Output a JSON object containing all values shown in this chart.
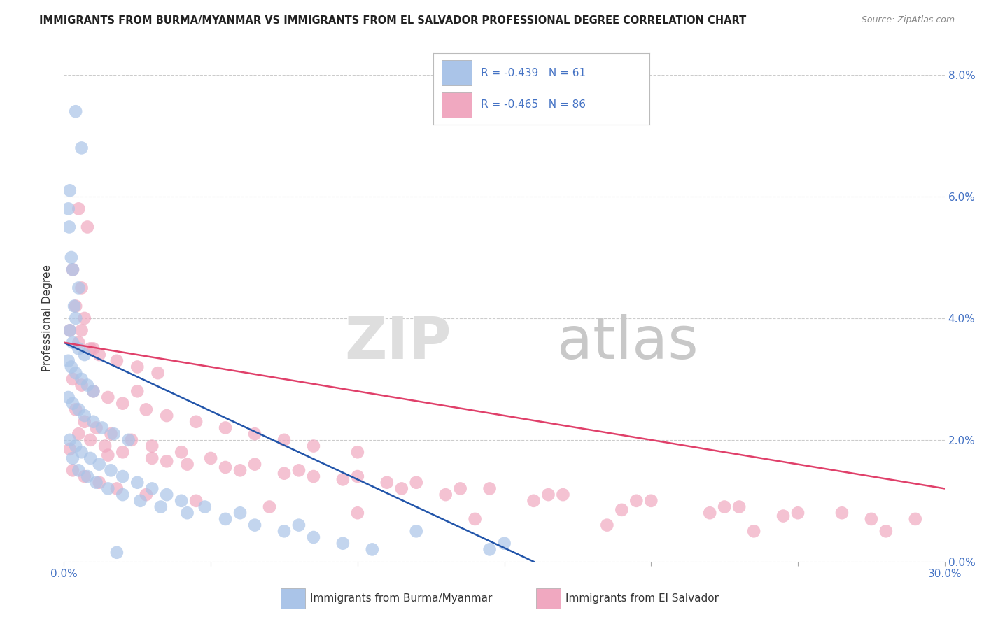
{
  "title": "IMMIGRANTS FROM BURMA/MYANMAR VS IMMIGRANTS FROM EL SALVADOR PROFESSIONAL DEGREE CORRELATION CHART",
  "source": "Source: ZipAtlas.com",
  "ylabel": "Professional Degree",
  "legend_blue_r": "-0.439",
  "legend_blue_n": "61",
  "legend_pink_r": "-0.465",
  "legend_pink_n": "86",
  "legend_blue_label": "Immigrants from Burma/Myanmar",
  "legend_pink_label": "Immigrants from El Salvador",
  "blue_color": "#aac4e8",
  "pink_color": "#f0a8c0",
  "blue_line_color": "#2255aa",
  "pink_line_color": "#e0406a",
  "right_axis_values": [
    0.0,
    2.0,
    4.0,
    6.0,
    8.0
  ],
  "xlim": [
    0.0,
    30.0
  ],
  "ylim": [
    0.0,
    8.0
  ],
  "blue_line_x0": 0.0,
  "blue_line_y0": 3.6,
  "blue_line_x1": 16.0,
  "blue_line_y1": 0.0,
  "pink_line_x0": 0.0,
  "pink_line_y0": 3.6,
  "pink_line_x1": 30.0,
  "pink_line_y1": 1.2,
  "blue_scatter": [
    [
      0.4,
      7.4
    ],
    [
      0.6,
      6.8
    ],
    [
      0.2,
      6.1
    ],
    [
      0.15,
      5.8
    ],
    [
      0.18,
      5.5
    ],
    [
      0.25,
      5.0
    ],
    [
      0.3,
      4.8
    ],
    [
      0.5,
      4.5
    ],
    [
      0.35,
      4.2
    ],
    [
      0.4,
      4.0
    ],
    [
      0.2,
      3.8
    ],
    [
      0.3,
      3.6
    ],
    [
      0.5,
      3.5
    ],
    [
      0.7,
      3.4
    ],
    [
      0.15,
      3.3
    ],
    [
      0.25,
      3.2
    ],
    [
      0.4,
      3.1
    ],
    [
      0.6,
      3.0
    ],
    [
      0.8,
      2.9
    ],
    [
      1.0,
      2.8
    ],
    [
      0.15,
      2.7
    ],
    [
      0.3,
      2.6
    ],
    [
      0.5,
      2.5
    ],
    [
      0.7,
      2.4
    ],
    [
      1.0,
      2.3
    ],
    [
      1.3,
      2.2
    ],
    [
      1.7,
      2.1
    ],
    [
      2.2,
      2.0
    ],
    [
      0.2,
      2.0
    ],
    [
      0.4,
      1.9
    ],
    [
      0.6,
      1.8
    ],
    [
      0.9,
      1.7
    ],
    [
      1.2,
      1.6
    ],
    [
      1.6,
      1.5
    ],
    [
      2.0,
      1.4
    ],
    [
      2.5,
      1.3
    ],
    [
      3.0,
      1.2
    ],
    [
      3.5,
      1.1
    ],
    [
      4.0,
      1.0
    ],
    [
      4.8,
      0.9
    ],
    [
      0.3,
      1.7
    ],
    [
      0.5,
      1.5
    ],
    [
      0.8,
      1.4
    ],
    [
      1.1,
      1.3
    ],
    [
      1.5,
      1.2
    ],
    [
      2.0,
      1.1
    ],
    [
      2.6,
      1.0
    ],
    [
      3.3,
      0.9
    ],
    [
      4.2,
      0.8
    ],
    [
      5.5,
      0.7
    ],
    [
      6.5,
      0.6
    ],
    [
      7.5,
      0.5
    ],
    [
      8.5,
      0.4
    ],
    [
      9.5,
      0.3
    ],
    [
      10.5,
      0.2
    ],
    [
      6.0,
      0.8
    ],
    [
      8.0,
      0.6
    ],
    [
      12.0,
      0.5
    ],
    [
      15.0,
      0.3
    ],
    [
      14.5,
      0.2
    ],
    [
      1.8,
      0.15
    ]
  ],
  "pink_scatter": [
    [
      0.5,
      5.8
    ],
    [
      0.8,
      5.5
    ],
    [
      0.3,
      4.8
    ],
    [
      0.6,
      4.5
    ],
    [
      0.4,
      4.2
    ],
    [
      0.7,
      4.0
    ],
    [
      0.2,
      3.8
    ],
    [
      0.5,
      3.6
    ],
    [
      0.9,
      3.5
    ],
    [
      1.2,
      3.4
    ],
    [
      1.8,
      3.3
    ],
    [
      2.5,
      3.2
    ],
    [
      3.2,
      3.1
    ],
    [
      0.3,
      3.0
    ],
    [
      0.6,
      2.9
    ],
    [
      1.0,
      2.8
    ],
    [
      1.5,
      2.7
    ],
    [
      2.0,
      2.6
    ],
    [
      2.8,
      2.5
    ],
    [
      3.5,
      2.4
    ],
    [
      4.5,
      2.3
    ],
    [
      5.5,
      2.2
    ],
    [
      6.5,
      2.1
    ],
    [
      7.5,
      2.0
    ],
    [
      8.5,
      1.9
    ],
    [
      10.0,
      1.8
    ],
    [
      0.4,
      2.5
    ],
    [
      0.7,
      2.3
    ],
    [
      1.1,
      2.2
    ],
    [
      1.6,
      2.1
    ],
    [
      2.3,
      2.0
    ],
    [
      3.0,
      1.9
    ],
    [
      4.0,
      1.8
    ],
    [
      5.0,
      1.7
    ],
    [
      6.5,
      1.6
    ],
    [
      8.0,
      1.5
    ],
    [
      10.0,
      1.4
    ],
    [
      12.0,
      1.3
    ],
    [
      14.5,
      1.2
    ],
    [
      17.0,
      1.1
    ],
    [
      20.0,
      1.0
    ],
    [
      22.5,
      0.9
    ],
    [
      25.0,
      0.8
    ],
    [
      27.5,
      0.7
    ],
    [
      0.5,
      2.1
    ],
    [
      0.9,
      2.0
    ],
    [
      1.4,
      1.9
    ],
    [
      2.0,
      1.8
    ],
    [
      3.0,
      1.7
    ],
    [
      4.2,
      1.6
    ],
    [
      6.0,
      1.5
    ],
    [
      8.5,
      1.4
    ],
    [
      11.0,
      1.3
    ],
    [
      13.5,
      1.2
    ],
    [
      16.5,
      1.1
    ],
    [
      19.5,
      1.0
    ],
    [
      23.0,
      0.9
    ],
    [
      26.5,
      0.8
    ],
    [
      29.0,
      0.7
    ],
    [
      0.3,
      1.5
    ],
    [
      0.7,
      1.4
    ],
    [
      1.2,
      1.3
    ],
    [
      1.8,
      1.2
    ],
    [
      2.8,
      1.1
    ],
    [
      4.5,
      1.0
    ],
    [
      7.0,
      0.9
    ],
    [
      10.0,
      0.8
    ],
    [
      14.0,
      0.7
    ],
    [
      18.5,
      0.6
    ],
    [
      23.5,
      0.5
    ],
    [
      28.0,
      0.5
    ],
    [
      22.0,
      0.8
    ],
    [
      24.5,
      0.75
    ],
    [
      19.0,
      0.85
    ],
    [
      16.0,
      1.0
    ],
    [
      13.0,
      1.1
    ],
    [
      11.5,
      1.2
    ],
    [
      9.5,
      1.35
    ],
    [
      7.5,
      1.45
    ],
    [
      5.5,
      1.55
    ],
    [
      3.5,
      1.65
    ],
    [
      1.5,
      1.75
    ],
    [
      0.2,
      1.85
    ],
    [
      0.6,
      3.8
    ],
    [
      1.0,
      3.5
    ],
    [
      2.5,
      2.8
    ]
  ],
  "background_color": "#ffffff",
  "grid_color": "#cccccc",
  "label_color": "#4472c4",
  "title_color": "#222222",
  "source_color": "#888888"
}
